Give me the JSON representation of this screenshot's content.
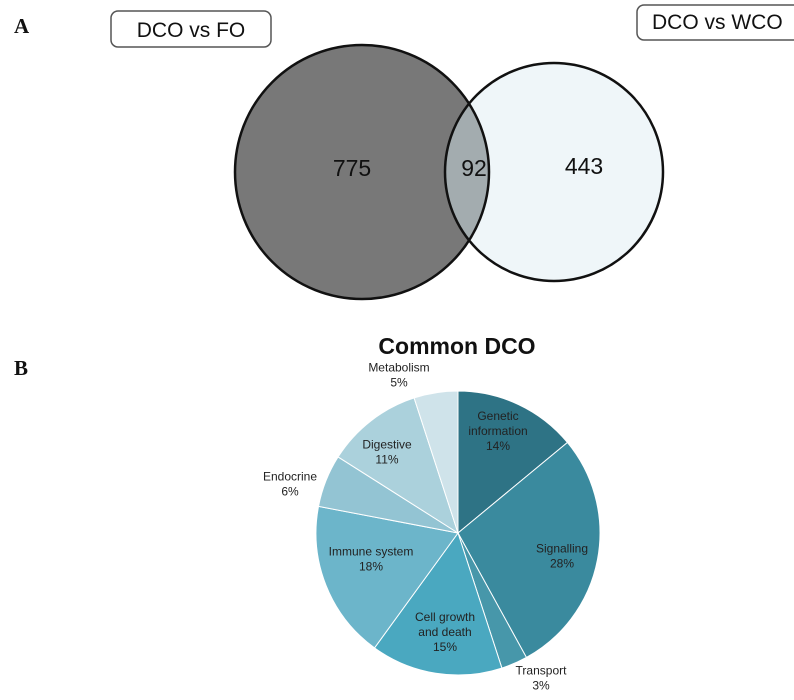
{
  "panel_a": {
    "letter": "A",
    "left_set_label": "DCO vs FO",
    "right_set_label": "DCO vs WCO",
    "colors": {
      "left": "#787878",
      "right": "#eff6f9",
      "overlap": "#a3acaf",
      "stroke": "#111111"
    }
  },
  "panel_b": {
    "letter": "B"
  },
  "chart_data": [
    {
      "type": "venn",
      "sets": [
        "DCO vs FO",
        "DCO vs WCO"
      ],
      "only_left": 775,
      "intersection": 92,
      "only_right": 443
    },
    {
      "type": "pie",
      "title": "Common DCO",
      "start": "12 o'clock, clockwise",
      "slices": [
        {
          "name": "Genetic information",
          "label_lines": [
            "Genetic",
            "information"
          ],
          "pct_label": "14%",
          "value": 14,
          "color": "#2e7385",
          "label_inside": true
        },
        {
          "name": "Signalling",
          "label_lines": [
            "Signalling"
          ],
          "pct_label": "28%",
          "value": 28,
          "color": "#3a8a9e",
          "label_inside": true
        },
        {
          "name": "Transport",
          "label_lines": [
            "Transport"
          ],
          "pct_label": "3%",
          "value": 3,
          "color": "#4797aa",
          "label_inside": false
        },
        {
          "name": "Cell growth and death",
          "label_lines": [
            "Cell growth",
            "and death"
          ],
          "pct_label": "15%",
          "value": 15,
          "color": "#4aa8c0",
          "label_inside": true
        },
        {
          "name": "Immune system",
          "label_lines": [
            "Immune system"
          ],
          "pct_label": "18%",
          "value": 18,
          "color": "#6cb5ca",
          "label_inside": true
        },
        {
          "name": "Endocrine",
          "label_lines": [
            "Endocrine"
          ],
          "pct_label": "6%",
          "value": 6,
          "color": "#93c4d3",
          "label_inside": false
        },
        {
          "name": "Digestive",
          "label_lines": [
            "Digestive"
          ],
          "pct_label": "11%",
          "value": 11,
          "color": "#abd1dc",
          "label_inside": true
        },
        {
          "name": "Metabolism",
          "label_lines": [
            "Metabolism"
          ],
          "pct_label": "5%",
          "value": 5,
          "color": "#cfe3ea",
          "label_inside": false
        }
      ]
    }
  ]
}
